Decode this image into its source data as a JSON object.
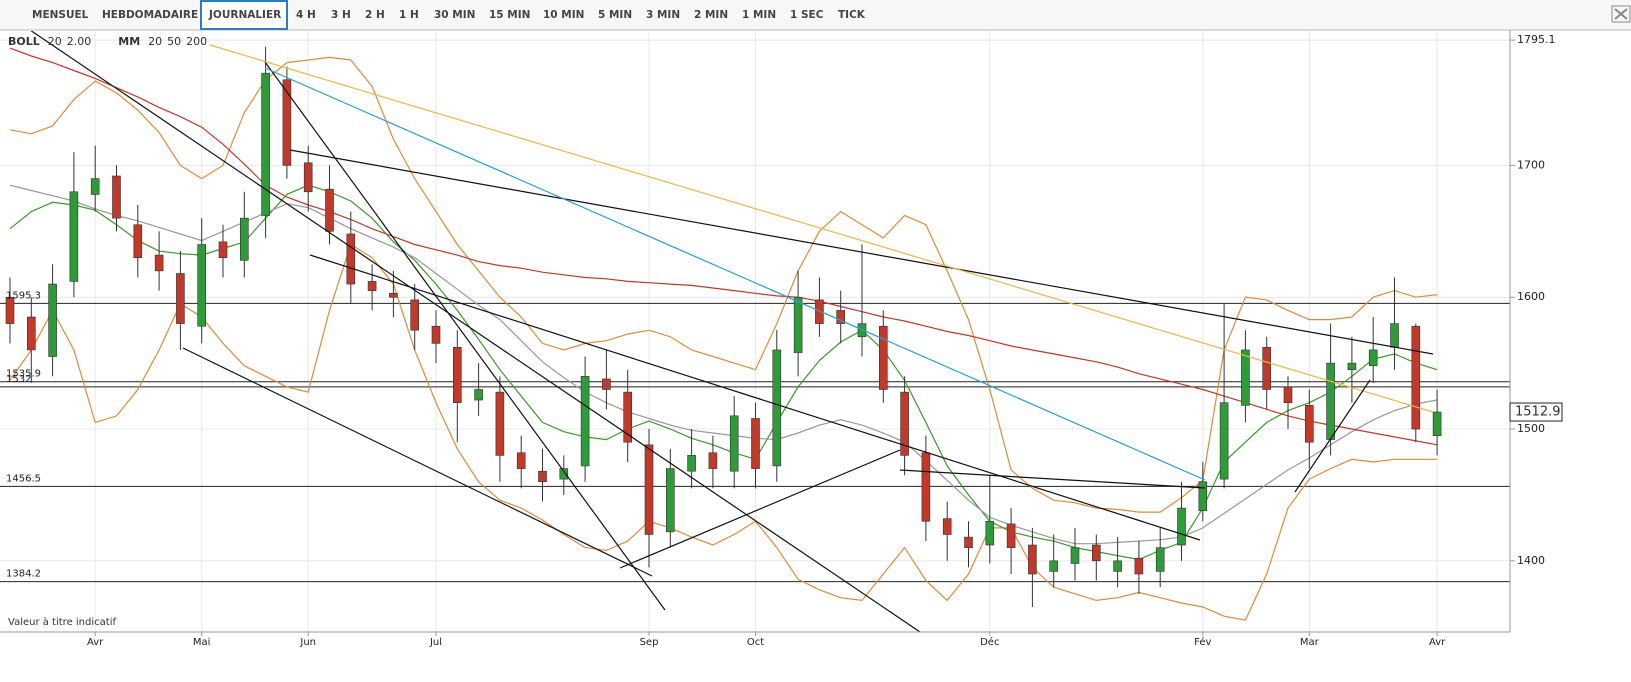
{
  "toolbar": {
    "tabs": [
      "MENSUEL",
      "HEBDOMADAIRE",
      "JOURNALIER",
      "4 H",
      "3 H",
      "2 H",
      "1 H",
      "30 MIN",
      "15 MIN",
      "10 MIN",
      "5 MIN",
      "3 MIN",
      "2 MIN",
      "1 MIN",
      "1 SEC",
      "TICK"
    ],
    "selected_tab": 2
  },
  "chart_data": {
    "type": "candlestick",
    "legend": [
      {
        "name": "BOLL",
        "params": [
          {
            "text": "20",
            "color": "#e08a3c"
          },
          {
            "text": "2.00",
            "color": "#e08a3c"
          }
        ]
      },
      {
        "name": "MM",
        "params": [
          {
            "text": "20",
            "color": "#3a9a2a"
          },
          {
            "text": "50",
            "color": "#999999"
          },
          {
            "text": "200",
            "color": "#c0392b"
          }
        ]
      }
    ],
    "note": "Valeur à titre indicatif",
    "categories": [
      null,
      null,
      null,
      null,
      "Avr",
      null,
      null,
      null,
      null,
      "Mai",
      null,
      null,
      null,
      null,
      "Jun",
      null,
      null,
      null,
      null,
      null,
      "Jul",
      null,
      null,
      null,
      null,
      null,
      null,
      null,
      null,
      null,
      "Sep",
      null,
      null,
      null,
      null,
      "Oct",
      null,
      null,
      null,
      null,
      null,
      null,
      null,
      null,
      null,
      null,
      "Déc",
      null,
      null,
      null,
      null,
      null,
      null,
      null,
      null,
      null,
      "Fév",
      null,
      null,
      null,
      null,
      "Mar",
      null,
      null,
      null,
      null,
      null,
      "Avr"
    ],
    "open": [
      1600,
      1585,
      1555,
      1612,
      1678,
      1692,
      1655,
      1632,
      1618,
      1578,
      1642,
      1628,
      1662,
      1765,
      1702,
      1682,
      1648,
      1612,
      1603,
      1598,
      1578,
      1562,
      1522,
      1528,
      1482,
      1468,
      1462,
      1472,
      1538,
      1528,
      1488,
      1422,
      1468,
      1482,
      1468,
      1508,
      1472,
      1558,
      1598,
      1590,
      1570,
      1578,
      1528,
      1482,
      1432,
      1418,
      1412,
      1428,
      1412,
      1392,
      1398,
      1412,
      1392,
      1402,
      1392,
      1412,
      1438,
      1462,
      1518,
      1562,
      1532,
      1518,
      1492,
      1545,
      1548,
      1562,
      1578,
      1495
    ],
    "high": [
      1615,
      1600,
      1625,
      1710,
      1715,
      1700,
      1670,
      1650,
      1635,
      1660,
      1655,
      1680,
      1790,
      1775,
      1715,
      1700,
      1665,
      1625,
      1620,
      1610,
      1590,
      1575,
      1550,
      1540,
      1495,
      1485,
      1480,
      1555,
      1560,
      1545,
      1500,
      1485,
      1500,
      1495,
      1525,
      1520,
      1575,
      1620,
      1615,
      1605,
      1640,
      1590,
      1540,
      1495,
      1445,
      1430,
      1465,
      1440,
      1425,
      1420,
      1425,
      1420,
      1418,
      1415,
      1425,
      1460,
      1475,
      1595,
      1575,
      1570,
      1540,
      1530,
      1580,
      1570,
      1585,
      1615,
      1580,
      1530
    ],
    "low": [
      1565,
      1535,
      1540,
      1600,
      1665,
      1650,
      1615,
      1605,
      1560,
      1565,
      1615,
      1615,
      1645,
      1690,
      1665,
      1640,
      1595,
      1590,
      1585,
      1560,
      1550,
      1490,
      1510,
      1460,
      1455,
      1445,
      1450,
      1460,
      1515,
      1475,
      1395,
      1410,
      1455,
      1455,
      1455,
      1455,
      1460,
      1540,
      1570,
      1565,
      1555,
      1520,
      1465,
      1415,
      1400,
      1395,
      1398,
      1390,
      1365,
      1380,
      1385,
      1385,
      1380,
      1375,
      1380,
      1400,
      1430,
      1455,
      1505,
      1515,
      1500,
      1470,
      1480,
      1520,
      1535,
      1545,
      1490,
      1480
    ],
    "close": [
      1580,
      1560,
      1610,
      1680,
      1690,
      1660,
      1630,
      1620,
      1580,
      1640,
      1630,
      1660,
      1770,
      1700,
      1680,
      1650,
      1610,
      1605,
      1600,
      1575,
      1565,
      1520,
      1530,
      1480,
      1470,
      1460,
      1470,
      1540,
      1530,
      1490,
      1420,
      1470,
      1480,
      1470,
      1510,
      1470,
      1560,
      1600,
      1580,
      1580,
      1580,
      1530,
      1480,
      1430,
      1420,
      1410,
      1430,
      1410,
      1390,
      1400,
      1410,
      1400,
      1400,
      1390,
      1410,
      1440,
      1460,
      1520,
      1560,
      1530,
      1520,
      1490,
      1550,
      1550,
      1560,
      1580,
      1500,
      1512.9
    ],
    "up_color": "#2e9a3a",
    "down_color": "#c0392b",
    "overlays": [
      {
        "color": "#e08a3c",
        "values": [
          1727,
          1724,
          1730,
          1750,
          1764,
          1755,
          1742,
          1725,
          1700,
          1690,
          1700,
          1740,
          1765,
          1778,
          1780,
          1782,
          1780,
          1760,
          1720,
          1690,
          1665,
          1640,
          1620,
          1600,
          1585,
          1565,
          1560,
          1565,
          1567,
          1572,
          1575,
          1570,
          1560,
          1555,
          1550,
          1545,
          1580,
          1620,
          1650,
          1665,
          1655,
          1645,
          1662,
          1655,
          1620,
          1583,
          1530,
          1469,
          1455,
          1446,
          1444,
          1440,
          1439,
          1437,
          1437,
          1448,
          1461,
          1560,
          1600,
          1598,
          1590,
          1583,
          1583,
          1585,
          1600,
          1605,
          1600,
          1602
        ]
      },
      {
        "color": "#e08a3c",
        "values": [
          1537,
          1560,
          1590,
          1560,
          1505,
          1510,
          1530,
          1560,
          1595,
          1585,
          1565,
          1548,
          1540,
          1532,
          1528,
          1590,
          1640,
          1630,
          1610,
          1560,
          1520,
          1485,
          1460,
          1446,
          1440,
          1431,
          1420,
          1410,
          1408,
          1415,
          1430,
          1425,
          1418,
          1412,
          1420,
          1430,
          1410,
          1386,
          1378,
          1372,
          1370,
          1390,
          1410,
          1385,
          1370,
          1390,
          1425,
          1425,
          1395,
          1380,
          1375,
          1370,
          1372,
          1376,
          1372,
          1368,
          1365,
          1358,
          1355,
          1390,
          1440,
          1462,
          1470,
          1477,
          1475,
          1477,
          1477,
          1477
        ]
      },
      {
        "color": "#3a9a2a",
        "values": [
          1652,
          1665,
          1672,
          1670,
          1666,
          1655,
          1643,
          1635,
          1633,
          1632,
          1637,
          1642,
          1660,
          1678,
          1685,
          1680,
          1673,
          1660,
          1642,
          1628,
          1610,
          1590,
          1568,
          1545,
          1525,
          1505,
          1498,
          1494,
          1492,
          1500,
          1506,
          1500,
          1493,
          1488,
          1482,
          1477,
          1505,
          1532,
          1552,
          1566,
          1575,
          1560,
          1537,
          1505,
          1472,
          1450,
          1430,
          1422,
          1418,
          1415,
          1410,
          1407,
          1404,
          1401,
          1408,
          1414,
          1440,
          1475,
          1490,
          1505,
          1514,
          1520,
          1528,
          1540,
          1553,
          1557,
          1550,
          1545
        ]
      },
      {
        "color": "#999999",
        "values": [
          1685,
          1681,
          1677,
          1673,
          1667,
          1662,
          1658,
          1653,
          1648,
          1643,
          1650,
          1657,
          1664,
          1671,
          1668,
          1660,
          1652,
          1645,
          1638,
          1630,
          1618,
          1606,
          1594,
          1583,
          1567,
          1551,
          1539,
          1528,
          1520,
          1513,
          1508,
          1503,
          1499,
          1497,
          1495,
          1493,
          1492,
          1497,
          1503,
          1507,
          1503,
          1497,
          1490,
          1476,
          1461,
          1446,
          1433,
          1427,
          1422,
          1417,
          1413,
          1413,
          1414,
          1415,
          1416,
          1418,
          1425,
          1436,
          1447,
          1458,
          1469,
          1478,
          1488,
          1498,
          1507,
          1514,
          1519,
          1522
        ]
      },
      {
        "color": "#c0392b",
        "values": [
          1789,
          1783,
          1778,
          1772,
          1766,
          1759,
          1752,
          1744,
          1737,
          1729,
          1716,
          1701,
          1685,
          1676,
          1670,
          1665,
          1659,
          1652,
          1646,
          1640,
          1636,
          1632,
          1627,
          1624,
          1622,
          1619,
          1617,
          1615,
          1614,
          1612,
          1611,
          1610,
          1609,
          1607,
          1605,
          1603,
          1601,
          1600,
          1597,
          1593,
          1589,
          1585,
          1582,
          1578,
          1574,
          1571,
          1567,
          1563,
          1560,
          1557,
          1554,
          1551,
          1547,
          1542,
          1538,
          1534,
          1530,
          1525,
          1520,
          1515,
          1510,
          1506,
          1503,
          1500,
          1497,
          1494,
          1491,
          1488
        ]
      }
    ],
    "levels": [
      1595.3,
      1535.9,
      1532,
      1456.5,
      1384.2
    ],
    "ylim": [
      1346,
      1802
    ],
    "yticks": [
      1400,
      1500,
      1600,
      1700,
      1795.1
    ],
    "grid": true
  }
}
